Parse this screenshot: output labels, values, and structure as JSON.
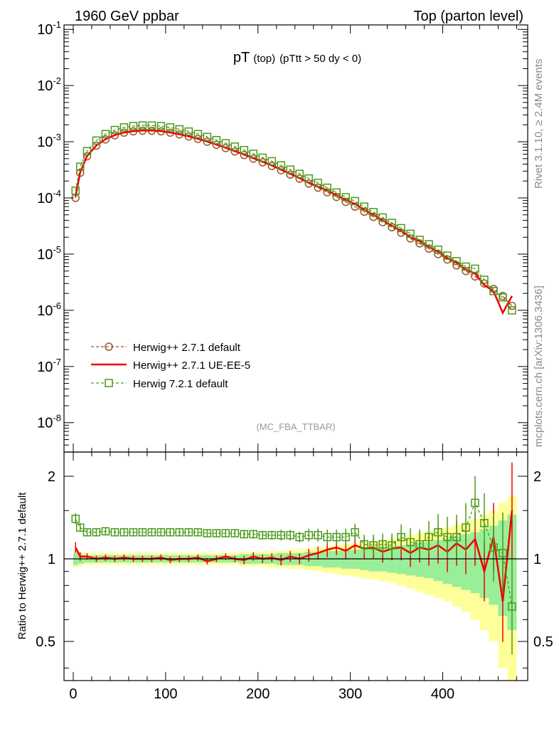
{
  "header": {
    "left": "1960 GeV ppbar",
    "right": "Top (parton level)"
  },
  "side_labels": {
    "rivet": "Rivet 3.1.10, ≥ 2.4M events",
    "mcplots": "mcplots.cern.ch [arXiv:1306.3436]"
  },
  "chart_data": {
    "type": "line",
    "title_main": "pT",
    "title_sub": "(top)",
    "title_cut": "(pTtt > 50 dy < 0)",
    "analysis": "(MC_FBA_TTBAR)",
    "xlim": [
      -10,
      492
    ],
    "xticks": [
      0,
      100,
      200,
      300,
      400
    ],
    "main_panel": {
      "y_scale": "log",
      "ylim": [
        3e-09,
        0.12
      ],
      "ytick_labels": [
        "10^-8",
        "10^-7",
        "10^-6",
        "10^-5",
        "10^-4",
        "10^-3",
        "10^-2",
        "10^-1"
      ],
      "series": [
        {
          "name": "Herwig++ 2.7.1 default",
          "color": "#a0522d",
          "style": "dashed",
          "marker": "circle",
          "x": [
            2.5,
            7.5,
            15,
            25,
            35,
            45,
            55,
            65,
            75,
            85,
            95,
            105,
            115,
            125,
            135,
            145,
            155,
            165,
            175,
            185,
            195,
            205,
            215,
            225,
            235,
            245,
            255,
            265,
            275,
            285,
            295,
            305,
            315,
            325,
            335,
            345,
            355,
            365,
            375,
            385,
            395,
            405,
            415,
            425,
            435,
            445,
            455,
            465,
            475
          ],
          "y": [
            0.0001,
            0.00028,
            0.00055,
            0.00085,
            0.0011,
            0.0013,
            0.00145,
            0.00153,
            0.00157,
            0.00157,
            0.00153,
            0.00145,
            0.00135,
            0.00124,
            0.00112,
            0.001,
            0.00088,
            0.00077,
            0.00067,
            0.00058,
            0.0005,
            0.00043,
            0.00037,
            0.00031,
            0.00026,
            0.00022,
            0.00018,
            0.000152,
            0.000126,
            0.000104,
            8.5e-05,
            7e-05,
            5.7e-05,
            4.6e-05,
            3.7e-05,
            3e-05,
            2.4e-05,
            1.9e-05,
            1.55e-05,
            1.25e-05,
            1e-05,
            8e-06,
            6.3e-06,
            5e-06,
            4e-06,
            3e-06,
            2.4e-06,
            1.8e-06,
            1.2e-06
          ]
        },
        {
          "name": "Herwig++ 2.7.1 UE-EE-5",
          "color": "#ee0000",
          "style": "solid",
          "marker": "none",
          "x": [
            2.5,
            7.5,
            15,
            25,
            35,
            45,
            55,
            65,
            75,
            85,
            95,
            105,
            115,
            125,
            135,
            145,
            155,
            165,
            175,
            185,
            195,
            205,
            215,
            225,
            235,
            245,
            255,
            265,
            275,
            285,
            295,
            305,
            315,
            325,
            335,
            345,
            355,
            365,
            375,
            385,
            395,
            405,
            415,
            425,
            435,
            445,
            455,
            465,
            475
          ],
          "y": [
            0.000105,
            0.000285,
            0.00056,
            0.00086,
            0.00111,
            0.00131,
            0.00146,
            0.00154,
            0.00158,
            0.00158,
            0.00154,
            0.00146,
            0.00136,
            0.00125,
            0.00113,
            0.00101,
            0.00089,
            0.00078,
            0.00068,
            0.00059,
            0.00051,
            0.00044,
            0.00038,
            0.00032,
            0.00027,
            0.000225,
            0.000185,
            0.000158,
            0.000135,
            0.000112,
            9.2e-05,
            7.8e-05,
            6.2e-05,
            5e-05,
            4e-05,
            3.2e-05,
            2.6e-05,
            2e-05,
            1.7e-05,
            1.35e-05,
            1.1e-05,
            8.5e-06,
            7e-06,
            5.3e-06,
            4.5e-06,
            2.8e-06,
            2.2e-06,
            9e-07,
            1.8e-06
          ]
        },
        {
          "name": "Herwig 7.2.1 default",
          "color": "#4a9a1a",
          "style": "dashed",
          "marker": "square",
          "x": [
            2.5,
            7.5,
            15,
            25,
            35,
            45,
            55,
            65,
            75,
            85,
            95,
            105,
            115,
            125,
            135,
            145,
            155,
            165,
            175,
            185,
            195,
            205,
            215,
            225,
            235,
            245,
            255,
            265,
            275,
            285,
            295,
            305,
            315,
            325,
            335,
            345,
            355,
            365,
            375,
            385,
            395,
            405,
            415,
            425,
            435,
            445,
            455,
            465,
            475
          ],
          "y": [
            0.000135,
            0.00036,
            0.00068,
            0.00105,
            0.00137,
            0.00162,
            0.0018,
            0.0019,
            0.00195,
            0.00195,
            0.0019,
            0.0018,
            0.00167,
            0.00152,
            0.00137,
            0.00122,
            0.00107,
            0.00094,
            0.00082,
            0.00071,
            0.00061,
            0.00052,
            0.00045,
            0.00038,
            0.00032,
            0.000268,
            0.000222,
            0.000185,
            0.000152,
            0.000125,
            0.000103,
            8.8e-05,
            7e-05,
            5.6e-05,
            4.5e-05,
            3.6e-05,
            2.9e-05,
            2.3e-05,
            1.8e-05,
            1.5e-05,
            1.2e-05,
            9.4e-06,
            7.5e-06,
            6e-06,
            5.5e-06,
            3.5e-06,
            2.2e-06,
            1.7e-06,
            1e-06
          ]
        }
      ]
    },
    "ratio_panel": {
      "ylabel": "Ratio to Herwig++ 2.7.1 default",
      "y_scale": "log",
      "ylim": [
        0.36,
        2.45
      ],
      "ytick_labels": [
        "0.5",
        "1",
        "2"
      ],
      "band_green_halfwidth": [
        0.05,
        0.04,
        0.03,
        0.03,
        0.03,
        0.03,
        0.03,
        0.03,
        0.03,
        0.03,
        0.03,
        0.03,
        0.03,
        0.03,
        0.03,
        0.03,
        0.03,
        0.03,
        0.03,
        0.04,
        0.04,
        0.04,
        0.04,
        0.05,
        0.05,
        0.05,
        0.06,
        0.06,
        0.07,
        0.07,
        0.08,
        0.08,
        0.09,
        0.1,
        0.1,
        0.11,
        0.12,
        0.13,
        0.14,
        0.15,
        0.17,
        0.19,
        0.21,
        0.23,
        0.25,
        0.28,
        0.32,
        0.38,
        0.45
      ],
      "band_yellow_halfwidth": [
        0.07,
        0.06,
        0.05,
        0.05,
        0.05,
        0.05,
        0.05,
        0.05,
        0.05,
        0.05,
        0.05,
        0.05,
        0.05,
        0.05,
        0.05,
        0.05,
        0.05,
        0.05,
        0.05,
        0.06,
        0.06,
        0.06,
        0.07,
        0.07,
        0.08,
        0.08,
        0.09,
        0.1,
        0.11,
        0.12,
        0.13,
        0.14,
        0.15,
        0.16,
        0.17,
        0.18,
        0.2,
        0.22,
        0.24,
        0.26,
        0.28,
        0.3,
        0.33,
        0.36,
        0.4,
        0.45,
        0.5,
        0.6,
        0.7
      ],
      "series": [
        {
          "name": "Herwig++ 2.7.1 UE-EE-5",
          "color": "#ee0000",
          "values": [
            1.1,
            1.02,
            1.02,
            1.0,
            1.01,
            1.0,
            1.01,
            1.0,
            1.0,
            1.0,
            1.01,
            0.99,
            1.0,
            1.0,
            1.01,
            0.98,
            1.0,
            1.02,
            1.0,
            0.99,
            1.02,
            1.0,
            1.01,
            0.99,
            1.02,
            1.0,
            1.03,
            1.05,
            1.08,
            1.1,
            1.07,
            1.12,
            1.09,
            1.1,
            1.06,
            1.09,
            1.1,
            1.05,
            1.1,
            1.08,
            1.12,
            1.06,
            1.14,
            1.08,
            1.18,
            0.9,
            1.2,
            0.7,
            1.5
          ]
        },
        {
          "name": "Herwig 7.2.1 default",
          "color": "#4a9a1a",
          "values": [
            1.4,
            1.3,
            1.25,
            1.25,
            1.26,
            1.25,
            1.25,
            1.25,
            1.25,
            1.25,
            1.25,
            1.25,
            1.25,
            1.25,
            1.25,
            1.24,
            1.24,
            1.24,
            1.24,
            1.23,
            1.23,
            1.22,
            1.22,
            1.22,
            1.22,
            1.2,
            1.22,
            1.22,
            1.2,
            1.2,
            1.2,
            1.25,
            1.13,
            1.12,
            1.13,
            1.12,
            1.2,
            1.15,
            1.13,
            1.2,
            1.25,
            1.2,
            1.2,
            1.3,
            1.6,
            1.35,
            1.1,
            1.05,
            0.67
          ]
        }
      ]
    },
    "legend_position": "bottom-left"
  }
}
